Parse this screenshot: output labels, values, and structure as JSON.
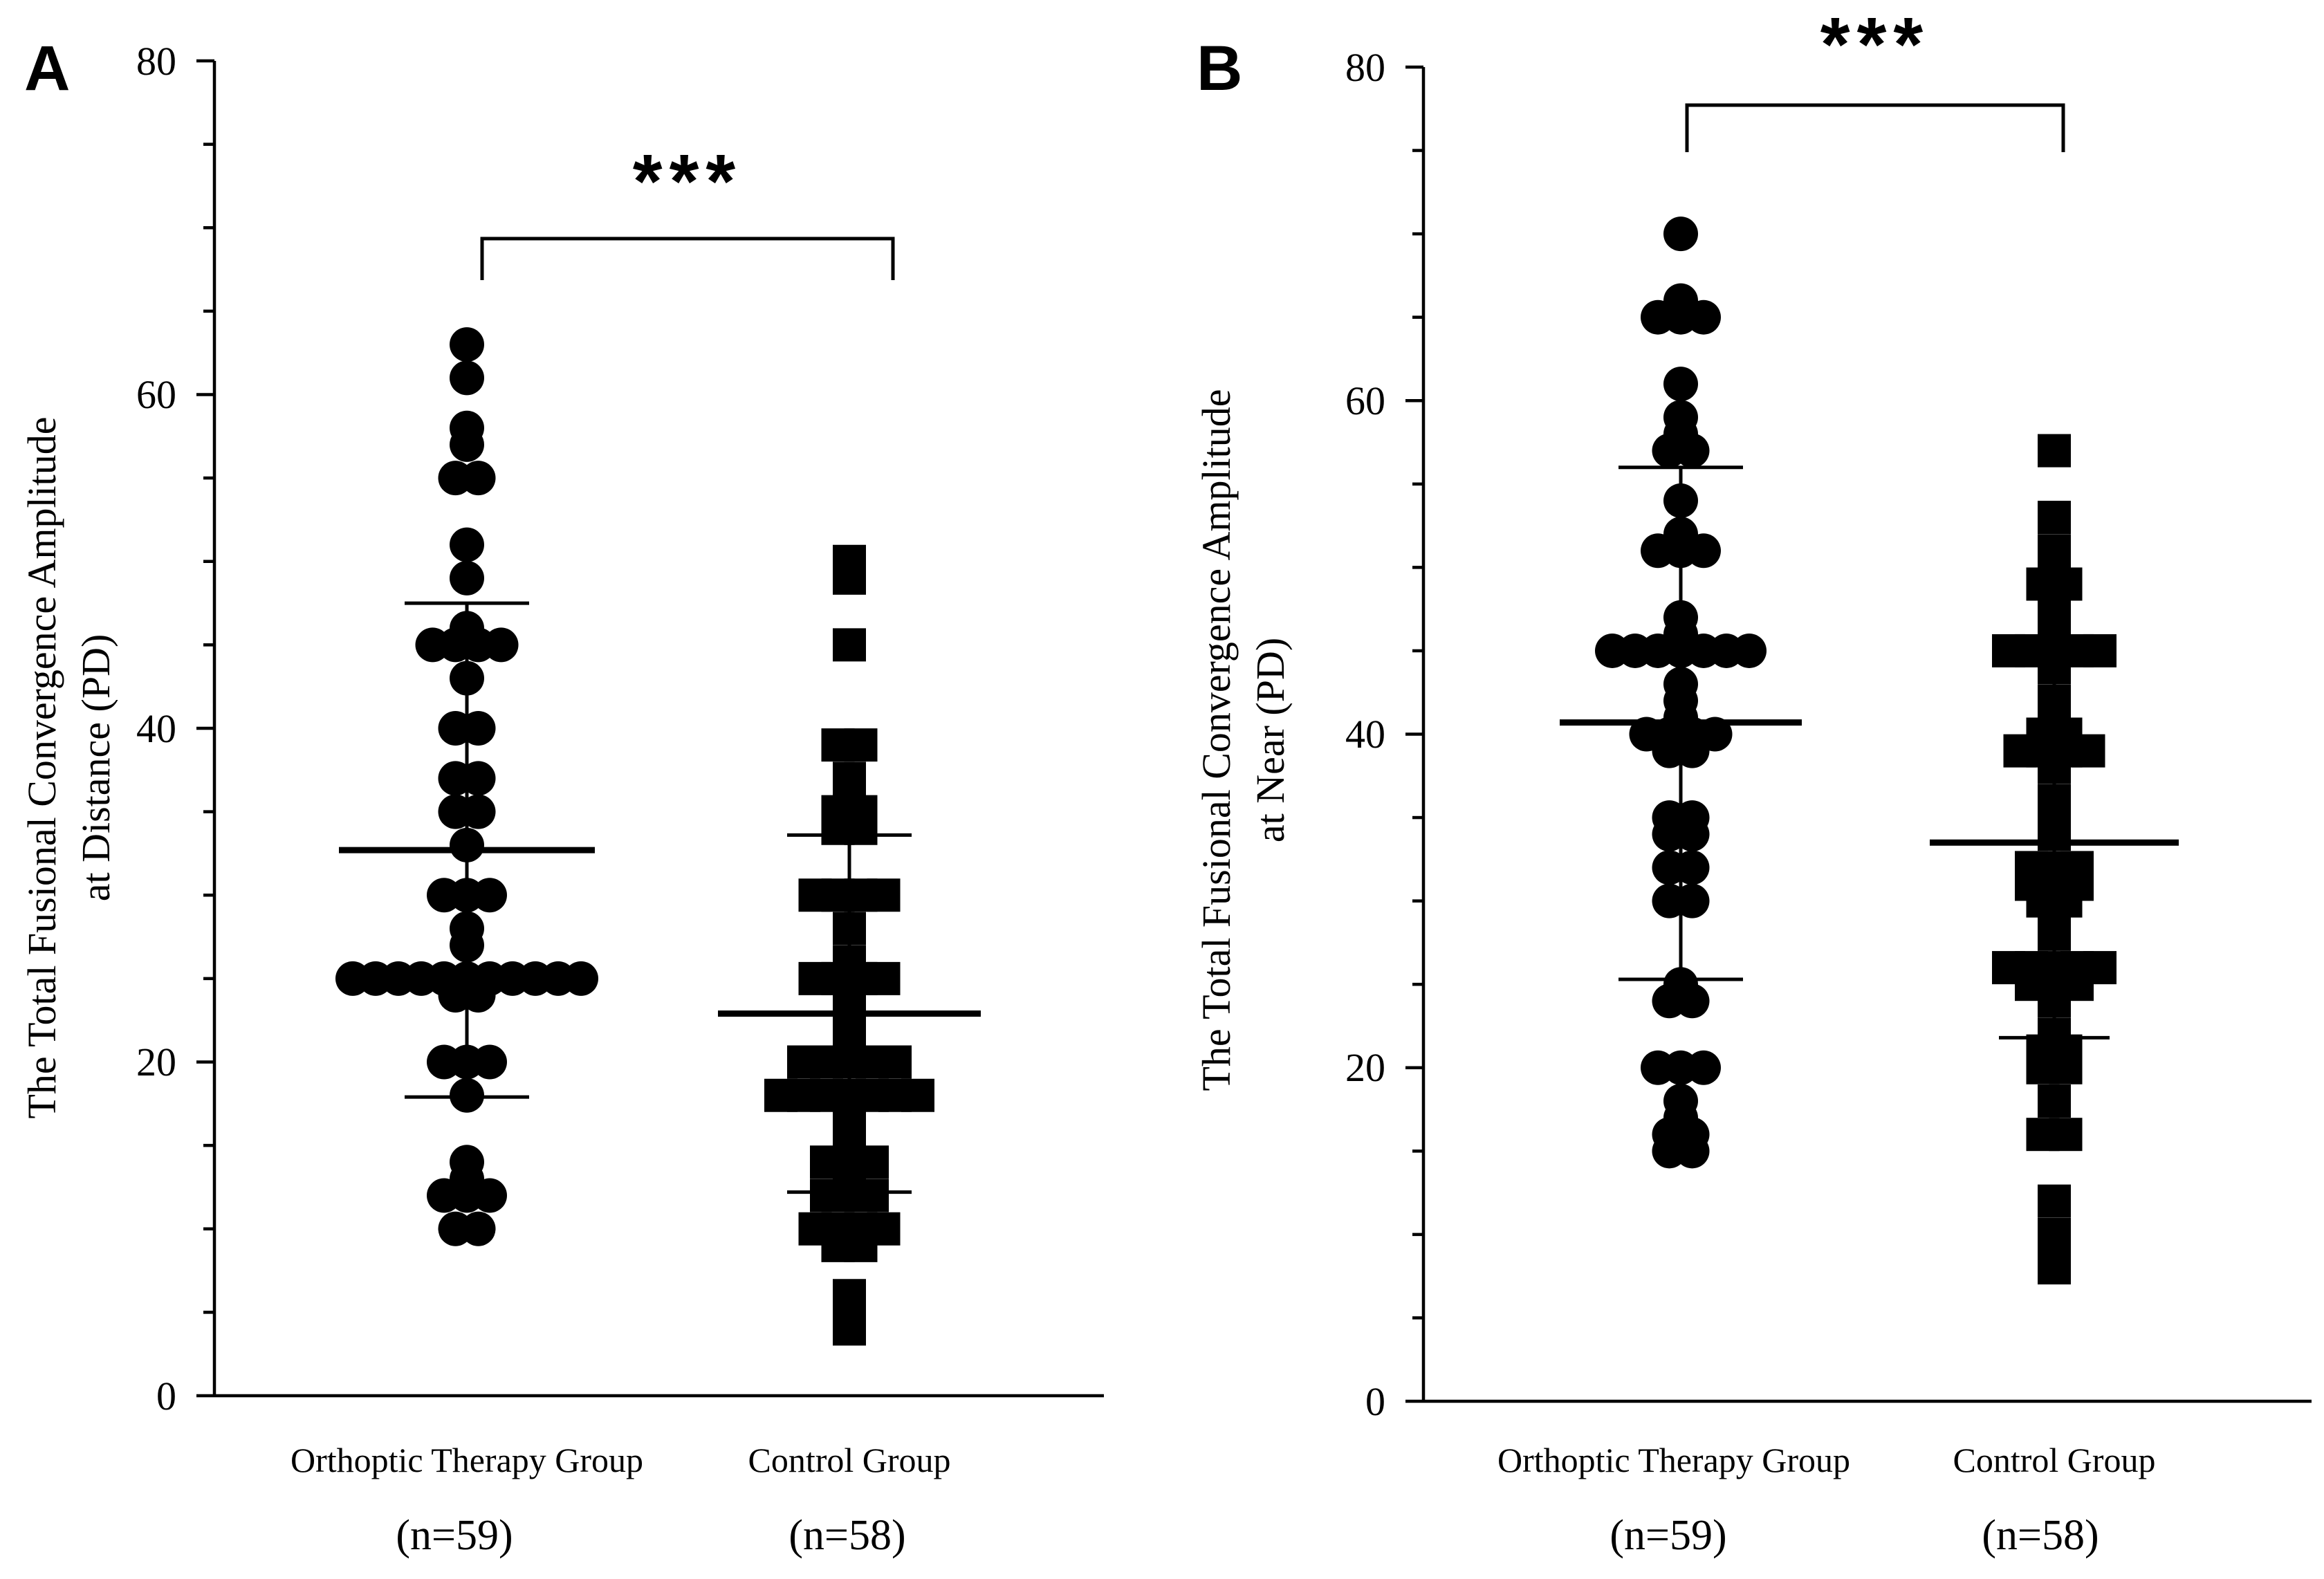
{
  "chart_data": [
    {
      "panel": "A",
      "type": "scatter",
      "ylabel_line1": "The Total Fusional Convergence Amplitude",
      "ylabel_line2": "at Distance (PD)",
      "ylim": [
        0,
        80
      ],
      "yticks": [
        "0",
        "20",
        "40",
        "60",
        "80"
      ],
      "significance": "***",
      "groups": [
        {
          "name": "Orthoptic Therapy Group",
          "n_label": "(n=59)",
          "marker": "circle",
          "mean": 32.7,
          "sd_low": 17.9,
          "sd_high": 47.5,
          "values": [
            63,
            61,
            58,
            57,
            55,
            55,
            51,
            49,
            46,
            45,
            45,
            45,
            45,
            43,
            40,
            40,
            37,
            37,
            35,
            35,
            33,
            30,
            30,
            30,
            28,
            27,
            25,
            25,
            25,
            25,
            25,
            25,
            25,
            25,
            25,
            25,
            24,
            24,
            25,
            20,
            20,
            20,
            18,
            14,
            13,
            12,
            12,
            12,
            10,
            10
          ]
        },
        {
          "name": "Control Group",
          "n_label": "(n=58)",
          "marker": "square",
          "mean": 22.9,
          "sd_low": 12.2,
          "sd_high": 33.6,
          "values": [
            50,
            49,
            45,
            39,
            39,
            37,
            36,
            35,
            35,
            34,
            34,
            30,
            30,
            30,
            30,
            28,
            26,
            25,
            25,
            25,
            25,
            24,
            22,
            21,
            20,
            20,
            20,
            20,
            20,
            18,
            18,
            18,
            18,
            18,
            18,
            18,
            17,
            16,
            15,
            14,
            14,
            14,
            13,
            12,
            12,
            12,
            10,
            10,
            10,
            10,
            9,
            9,
            6,
            5,
            4
          ]
        }
      ]
    },
    {
      "panel": "B",
      "type": "scatter",
      "ylabel_line1": "The Total Fusional Convergence Amplitude",
      "ylabel_line2": "at Near (PD)",
      "ylim": [
        0,
        80
      ],
      "yticks": [
        "0",
        "20",
        "40",
        "60",
        "80"
      ],
      "significance": "***",
      "groups": [
        {
          "name": "Orthoptic Therapy Group",
          "n_label": "(n=59)",
          "marker": "circle",
          "mean": 40.7,
          "sd_low": 25.3,
          "sd_high": 56.0,
          "values": [
            70,
            66,
            65,
            65,
            65,
            61,
            59,
            58,
            57,
            57,
            54,
            52,
            51,
            51,
            51,
            47,
            46,
            45,
            45,
            45,
            45,
            45,
            45,
            45,
            43,
            42,
            41,
            40,
            40,
            40,
            40,
            39,
            39,
            35,
            35,
            34,
            34,
            32,
            32,
            30,
            30,
            25,
            24,
            24,
            20,
            20,
            20,
            18,
            17,
            16,
            16,
            15,
            15
          ]
        },
        {
          "name": "Control Group",
          "n_label": "(n=58)",
          "marker": "square",
          "mean": 33.5,
          "sd_low": 21.8,
          "sd_high": 45.5,
          "values": [
            57,
            53,
            51,
            50,
            49,
            49,
            48,
            47,
            46,
            45,
            45,
            45,
            45,
            45,
            44,
            42,
            41,
            40,
            40,
            39,
            39,
            39,
            39,
            38,
            36,
            35,
            34,
            32,
            32,
            32,
            31,
            31,
            31,
            30,
            30,
            29,
            28,
            26,
            26,
            26,
            26,
            26,
            25,
            25,
            25,
            24,
            22,
            21,
            21,
            20,
            20,
            18,
            16,
            16,
            12,
            10,
            9,
            8
          ]
        }
      ]
    }
  ]
}
